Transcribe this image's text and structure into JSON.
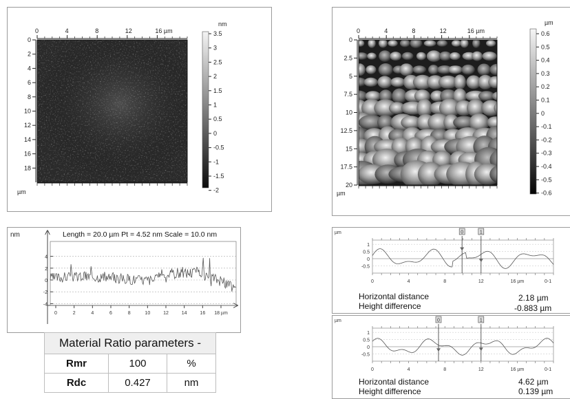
{
  "afm_left": {
    "x_ticks": [
      "0",
      "4",
      "8",
      "12",
      "16 µm"
    ],
    "y_ticks": [
      "0",
      "2",
      "4",
      "6",
      "8",
      "10",
      "12",
      "14",
      "16",
      "18"
    ],
    "y_unit": "µm",
    "scale_unit": "nm",
    "scale_ticks": [
      "3.5",
      "3",
      "2.5",
      "2",
      "1.5",
      "1",
      "0.5",
      "0",
      "-0.5",
      "-1",
      "-1.5",
      "-2"
    ]
  },
  "afm_right": {
    "x_ticks": [
      "0",
      "4",
      "8",
      "12",
      "16 µm"
    ],
    "y_ticks": [
      "0",
      "2.5",
      "5",
      "7.5",
      "10",
      "12.5",
      "15",
      "17.5",
      "20"
    ],
    "y_unit": "µm",
    "scale_unit": "µm",
    "scale_ticks": [
      "0.6",
      "0.5",
      "0.4",
      "0.3",
      "0.2",
      "0.1",
      "0",
      "-0.1",
      "-0.2",
      "-0.3",
      "-0.4",
      "-0.5",
      "-0.6"
    ]
  },
  "profile_left": {
    "unit": "nm",
    "header": "Length = 20.0 µm  Pt = 4.52 nm  Scale = 10.0 nm",
    "y_ticks": [
      "4",
      "2",
      "0",
      "-2",
      "-4"
    ],
    "x_ticks": [
      "0",
      "2",
      "4",
      "6",
      "8",
      "10",
      "12",
      "14",
      "16",
      "18 µm"
    ]
  },
  "material_ratio": {
    "title": "Material Ratio parameters -",
    "rows": [
      {
        "name": "Rmr",
        "value": "100",
        "unit": "%"
      },
      {
        "name": "Rdc",
        "value": "0.427",
        "unit": "nm"
      }
    ]
  },
  "profile_right_1": {
    "unit": "µm",
    "y_ticks": [
      "1",
      "0.5",
      "0",
      "-0.5"
    ],
    "x_ticks": [
      "0",
      "4",
      "8",
      "12",
      "16 µm"
    ],
    "axis_end": "0-1",
    "cursor_labels": [
      "0",
      "1"
    ],
    "horizontal_distance_label": "Horizontal distance",
    "horizontal_distance_value": "2.18 µm",
    "height_difference_label": "Height difference",
    "height_difference_value": "-0.883 µm"
  },
  "profile_right_2": {
    "unit": "µm",
    "y_ticks": [
      "1",
      "0.5",
      "0",
      "-0.5"
    ],
    "x_ticks": [
      "0",
      "4",
      "8",
      "12",
      "16 µm"
    ],
    "axis_end": "0-1",
    "cursor_labels": [
      "0",
      "1"
    ],
    "horizontal_distance_label": "Horizontal distance",
    "horizontal_distance_value": "4.62 µm",
    "height_difference_label": "Height difference",
    "height_difference_value": "0.139 µm"
  }
}
